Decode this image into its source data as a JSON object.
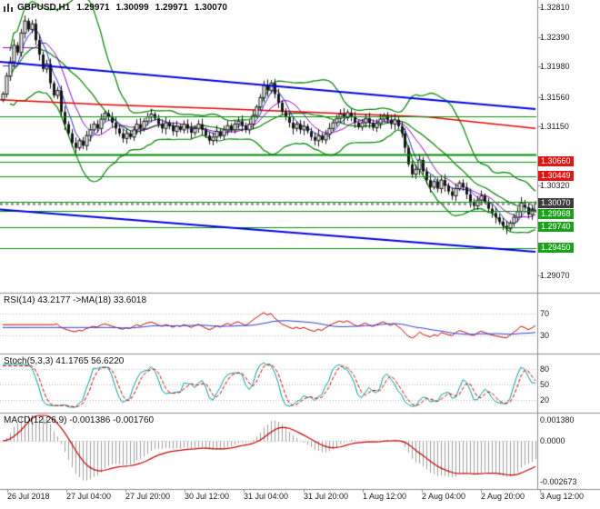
{
  "header": {
    "symbol_period": "GBPUSD,H1",
    "open": "1.29971",
    "high": "1.30099",
    "low": "1.29971",
    "close": "1.30070"
  },
  "colors": {
    "background": "#ffffff",
    "panel_border": "#8c8c8c",
    "bull_body": "#ffffff",
    "bear_body": "#161616",
    "candle_outline": "#161616",
    "bollinger": "#008000",
    "red_ma": "#e80000",
    "sma_fast": "#2929cc",
    "sma_medium": "#8a00b8",
    "trendline": "#0000e0",
    "horizontal_line": "#008c00",
    "resistance_flag": "#e01515",
    "support_flag": "#1ca11c",
    "current_price_flag": "#3c3c3c",
    "rsi_line": "#c40000",
    "rsi_ma_line": "#2b39c8",
    "stoch_k": "#00999c",
    "stoch_d": "#c40000",
    "macd_histogram": "#9c9c9c",
    "macd_signal": "#c40000",
    "axis_text": "#1a1a1a",
    "level_dotted": "#b4b4b4"
  },
  "price_axis": {
    "gridlines": [
      {
        "text": "1.32810",
        "price": 1.3281
      },
      {
        "text": "1.32390",
        "price": 1.3239
      },
      {
        "text": "1.31980",
        "price": 1.3198
      },
      {
        "text": "1.31560",
        "price": 1.3156
      },
      {
        "text": "1.31150",
        "price": 1.3115
      },
      {
        "text": "1.30320",
        "price": 1.3032
      },
      {
        "text": "1.29070",
        "price": 1.2907
      }
    ],
    "flags": [
      {
        "text": "1.30660",
        "price": 1.3066,
        "type": "resistance"
      },
      {
        "text": "1.30449",
        "price": 1.30449,
        "type": "resistance"
      },
      {
        "text": "1.30070",
        "price": 1.3007,
        "type": "current"
      },
      {
        "text": "1.29968",
        "price": 1.29968,
        "type": "support"
      },
      {
        "text": "1.29740",
        "price": 1.2974,
        "type": "support"
      },
      {
        "text": "1.29450",
        "price": 1.2945,
        "type": "support"
      }
    ]
  },
  "time_axis": {
    "labels": [
      "26 Jul 2018",
      "27 Jul 04:00",
      "27 Jul 20:00",
      "30 Jul 12:00",
      "31 Jul 04:00",
      "31 Jul 20:00",
      "1 Aug 12:00",
      "2 Aug 04:00",
      "2 Aug 20:00",
      "3 Aug 12:00"
    ]
  },
  "panels": {
    "rsi": {
      "label": "RSI(14) 43.2177 ->MA(18) 33.6018",
      "axis_labels": [
        {
          "text": "70",
          "value": 70
        },
        {
          "text": "30",
          "value": 30
        }
      ]
    },
    "stoch": {
      "label": "Stoch(5,3,3) 41.1765 56.6220",
      "axis_labels": [
        {
          "text": "80",
          "value": 80
        },
        {
          "text": "50",
          "value": 50
        },
        {
          "text": "20",
          "value": 20
        }
      ]
    },
    "macd": {
      "label": "MACD(12,26,9) -0.001386 -0.001760",
      "axis_labels": [
        {
          "text": "0.001380",
          "value": 0.00138
        },
        {
          "text": "0.0000",
          "value": 0
        },
        {
          "text": "-0.002673",
          "value": -0.002673
        }
      ]
    }
  },
  "chart_data": [
    {
      "type": "candlestick",
      "title": "GBPUSD,H1",
      "ohlc_current": {
        "open": 1.29971,
        "high": 1.30099,
        "low": 1.29971,
        "close": 1.3007
      },
      "ylim": [
        1.2907,
        1.3281
      ],
      "grid": false,
      "x_tick_labels": [
        "26 Jul 2018",
        "27 Jul 04:00",
        "27 Jul 20:00",
        "30 Jul 12:00",
        "31 Jul 04:00",
        "31 Jul 20:00",
        "1 Aug 12:00",
        "2 Aug 04:00",
        "2 Aug 20:00",
        "3 Aug 12:00"
      ],
      "closes": [
        1.316,
        1.3185,
        1.3205,
        1.3228,
        1.3218,
        1.3245,
        1.3262,
        1.325,
        1.3258,
        1.3235,
        1.3215,
        1.3195,
        1.3202,
        1.3175,
        1.3158,
        1.3165,
        1.3135,
        1.3118,
        1.3105,
        1.3092,
        1.3085,
        1.3095,
        1.3088,
        1.3102,
        1.311,
        1.3118,
        1.3112,
        1.3125,
        1.3133,
        1.3128,
        1.312,
        1.3112,
        1.3105,
        1.3098,
        1.3105,
        1.31,
        1.311,
        1.3118,
        1.3112,
        1.3122,
        1.3128,
        1.3132,
        1.3126,
        1.3118,
        1.3112,
        1.312,
        1.3115,
        1.3108,
        1.3115,
        1.311,
        1.3118,
        1.3112,
        1.3106,
        1.3112,
        1.3118,
        1.311,
        1.3102,
        1.3095,
        1.31,
        1.3108,
        1.3102,
        1.311,
        1.3116,
        1.311,
        1.3118,
        1.3122,
        1.3116,
        1.311,
        1.3118,
        1.313,
        1.3142,
        1.3155,
        1.3172,
        1.3165,
        1.3175,
        1.316,
        1.3148,
        1.3135,
        1.3128,
        1.312,
        1.3112,
        1.3118,
        1.311,
        1.3115,
        1.3108,
        1.31,
        1.3095,
        1.3102,
        1.3096,
        1.3104,
        1.3112,
        1.312,
        1.3126,
        1.3132,
        1.3127,
        1.3134,
        1.3128,
        1.312,
        1.3114,
        1.312,
        1.3126,
        1.312,
        1.3113,
        1.3119,
        1.3125,
        1.313,
        1.3124,
        1.3118,
        1.3124,
        1.3115,
        1.3105,
        1.3085,
        1.3062,
        1.3048,
        1.3055,
        1.3068,
        1.3052,
        1.304,
        1.303,
        1.3038,
        1.3028,
        1.304,
        1.3032,
        1.3024,
        1.3018,
        1.3028,
        1.3036,
        1.303,
        1.302,
        1.301,
        1.3004,
        1.3012,
        1.3018,
        1.301,
        1.3,
        1.2994,
        1.2988,
        1.2982,
        1.2976,
        1.2972,
        1.298,
        1.2988,
        1.2996,
        1.3008,
        1.3002,
        1.2992,
        1.2998,
        1.3007
      ],
      "overlays": {
        "bollinger": {
          "period": 20,
          "deviation": 2
        },
        "sma_fast_period": 5,
        "sma_medium_period": 10,
        "red_ma_anchor_prices": [
          1.3152,
          1.3145,
          1.314,
          1.3134,
          1.3128,
          1.3112
        ],
        "trendlines": [
          {
            "p_start": 1.3205,
            "p_end": 1.3139
          },
          {
            "p_start": 1.2999,
            "p_end": 1.294
          }
        ],
        "horizontal_lines": [
          {
            "price": 1.3129,
            "width": 1
          },
          {
            "price": 1.3075,
            "width": 2
          },
          {
            "price": 1.3066,
            "width": 1
          },
          {
            "price": 1.30449,
            "width": 1
          },
          {
            "price": 1.301,
            "width": 1
          },
          {
            "price": 1.29968,
            "width": 1
          },
          {
            "price": 1.2974,
            "width": 1
          },
          {
            "price": 1.2945,
            "width": 1
          }
        ],
        "current_price": 1.3007
      }
    },
    {
      "type": "line",
      "name": "RSI",
      "period": 14,
      "ma_period": 18,
      "current": 43.2177,
      "ma_current": 33.6018,
      "range": [
        0,
        100
      ],
      "levels": [
        70,
        30
      ]
    },
    {
      "type": "line",
      "name": "Stochastic",
      "k": 5,
      "d": 3,
      "slowing": 3,
      "current_k": 41.1765,
      "current_d": 56.622,
      "range": [
        0,
        100
      ],
      "levels": [
        80,
        50,
        20
      ]
    },
    {
      "type": "histogram+line",
      "name": "MACD",
      "fast": 12,
      "slow": 26,
      "signal": 9,
      "current_macd": -0.001386,
      "current_signal": -0.00176,
      "ylim": [
        -0.00296,
        0.00167
      ]
    }
  ]
}
